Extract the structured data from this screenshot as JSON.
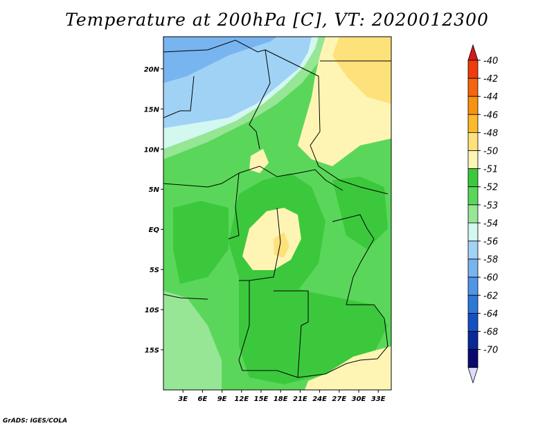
{
  "title": "Temperature at 200hPa [C], VT: 2020012300",
  "footer": "GrADS: IGES/COLA",
  "chart_data": {
    "type": "heatmap",
    "variable": "Temperature at 200hPa",
    "units": "C",
    "valid_time": "2020012300",
    "x_axis": {
      "ticks": [
        3,
        6,
        9,
        12,
        15,
        18,
        21,
        24,
        27,
        30,
        33
      ],
      "tick_labels": [
        "3E",
        "6E",
        "9E",
        "12E",
        "15E",
        "18E",
        "21E",
        "24E",
        "27E",
        "30E",
        "33E"
      ],
      "range": [
        0,
        35
      ]
    },
    "y_axis": {
      "ticks": [
        20,
        15,
        10,
        5,
        0,
        -5,
        -10,
        -15
      ],
      "tick_labels": [
        "20N",
        "15N",
        "10N",
        "5N",
        "EQ",
        "5S",
        "10S",
        "15S"
      ],
      "range": [
        -20,
        24
      ]
    },
    "colorbar": {
      "levels": [
        "-40",
        "-42",
        "-44",
        "-46",
        "-48",
        "-50",
        "-51",
        "-52",
        "-53",
        "-54",
        "-56",
        "-58",
        "-60",
        "-62",
        "-64",
        "-68",
        "-70"
      ],
      "colors": [
        "#d7191c",
        "#f03c0a",
        "#f5640f",
        "#f8930f",
        "#fbb92c",
        "#fde17a",
        "#fef5b4",
        "#3cc83c",
        "#5ad75a",
        "#96e696",
        "#d2f8f0",
        "#a0d2f5",
        "#78b4f0",
        "#5096e6",
        "#2c78d7",
        "#1450c3",
        "#0a2896",
        "#0a0a6e",
        "#dcdcff"
      ]
    }
  }
}
